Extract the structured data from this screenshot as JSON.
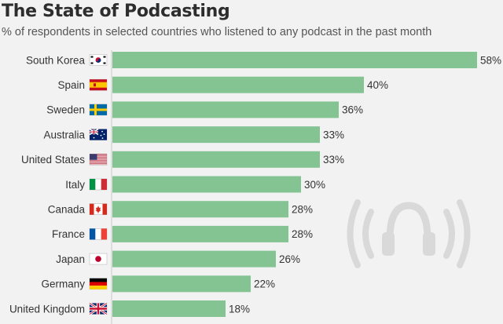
{
  "colors": {
    "bar": "#84c493",
    "background": "#f2f2f2",
    "icon": "#dadada"
  },
  "icons": {
    "watermark": "podcast-headphones-icon"
  },
  "chart_data": {
    "type": "bar",
    "orientation": "horizontal",
    "title": "The State of Podcasting",
    "subtitle": "% of respondents in selected countries who listened to any podcast in the past month",
    "categories": [
      "South Korea",
      "Spain",
      "Sweden",
      "Australia",
      "United States",
      "Italy",
      "Canada",
      "France",
      "Japan",
      "Germany",
      "United Kingdom"
    ],
    "flags": [
      "south-korea-flag-icon",
      "spain-flag-icon",
      "sweden-flag-icon",
      "australia-flag-icon",
      "united-states-flag-icon",
      "italy-flag-icon",
      "canada-flag-icon",
      "france-flag-icon",
      "japan-flag-icon",
      "germany-flag-icon",
      "united-kingdom-flag-icon"
    ],
    "values": [
      58,
      40,
      36,
      33,
      33,
      30,
      28,
      28,
      26,
      22,
      18
    ],
    "value_labels": [
      "58%",
      "40%",
      "36%",
      "33%",
      "33%",
      "30%",
      "28%",
      "28%",
      "26%",
      "22%",
      "18%"
    ],
    "xlim": [
      0,
      58
    ],
    "grid": false
  }
}
